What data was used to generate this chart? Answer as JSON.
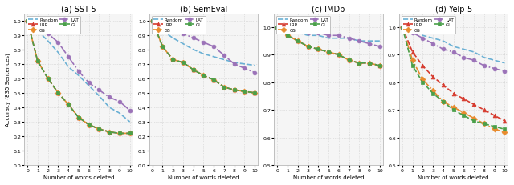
{
  "titles": [
    "(a) SST-5",
    "(b) SemEval",
    "(c) IMDb",
    "(d) Yelp-5"
  ],
  "ylabel": "Accuracy (835 Sentences)",
  "xlabel": "Number of words deleted",
  "x": [
    0,
    1,
    2,
    3,
    4,
    5,
    6,
    7,
    8,
    9,
    10
  ],
  "series": {
    "Random": {
      "color": "#6ab0d4",
      "linestyle": "--",
      "marker": "",
      "linewidth": 1.2
    },
    "LRP": {
      "color": "#d63b2f",
      "linestyle": "--",
      "marker": "^",
      "linewidth": 1.2
    },
    "GS": {
      "color": "#e88b2e",
      "linestyle": "-.",
      "marker": "D",
      "linewidth": 1.2
    },
    "LAT": {
      "color": "#9b72b8",
      "linestyle": "-.",
      "marker": "o",
      "linewidth": 1.2
    },
    "GI": {
      "color": "#4aa04a",
      "linestyle": "--",
      "marker": "s",
      "linewidth": 1.2
    }
  },
  "data": {
    "SST-5": {
      "Random": [
        1.0,
        0.93,
        0.86,
        0.78,
        0.68,
        0.62,
        0.55,
        0.48,
        0.4,
        0.36,
        0.3
      ],
      "LRP": [
        1.0,
        0.72,
        0.6,
        0.5,
        0.42,
        0.33,
        0.28,
        0.25,
        0.23,
        0.22,
        0.22
      ],
      "GS": [
        1.0,
        0.72,
        0.6,
        0.5,
        0.42,
        0.33,
        0.28,
        0.25,
        0.23,
        0.22,
        0.22
      ],
      "LAT": [
        1.0,
        0.96,
        0.91,
        0.85,
        0.75,
        0.65,
        0.57,
        0.52,
        0.47,
        0.44,
        0.38
      ],
      "GI": [
        1.0,
        0.72,
        0.6,
        0.5,
        0.42,
        0.33,
        0.28,
        0.25,
        0.23,
        0.22,
        0.22
      ]
    },
    "SemEval": {
      "Random": [
        1.0,
        0.93,
        0.88,
        0.84,
        0.8,
        0.77,
        0.75,
        0.73,
        0.71,
        0.7,
        0.69
      ],
      "LRP": [
        1.0,
        0.82,
        0.73,
        0.71,
        0.66,
        0.62,
        0.59,
        0.54,
        0.52,
        0.51,
        0.5
      ],
      "GS": [
        1.0,
        0.82,
        0.73,
        0.71,
        0.66,
        0.62,
        0.59,
        0.54,
        0.52,
        0.51,
        0.5
      ],
      "LAT": [
        1.0,
        0.97,
        0.94,
        0.91,
        0.88,
        0.85,
        0.82,
        0.76,
        0.7,
        0.67,
        0.64
      ],
      "GI": [
        1.0,
        0.82,
        0.73,
        0.71,
        0.66,
        0.62,
        0.59,
        0.54,
        0.52,
        0.51,
        0.5
      ]
    },
    "IMDb": {
      "Random": [
        1.0,
        0.99,
        0.98,
        0.97,
        0.97,
        0.96,
        0.96,
        0.96,
        0.95,
        0.95,
        0.95
      ],
      "LRP": [
        1.0,
        0.97,
        0.95,
        0.93,
        0.92,
        0.91,
        0.9,
        0.88,
        0.87,
        0.87,
        0.86
      ],
      "GS": [
        1.0,
        0.97,
        0.95,
        0.93,
        0.92,
        0.91,
        0.9,
        0.88,
        0.87,
        0.87,
        0.86
      ],
      "LAT": [
        1.0,
        0.99,
        0.99,
        0.98,
        0.98,
        0.97,
        0.97,
        0.96,
        0.95,
        0.94,
        0.93
      ],
      "GI": [
        1.0,
        0.97,
        0.95,
        0.93,
        0.92,
        0.91,
        0.9,
        0.88,
        0.87,
        0.87,
        0.86
      ]
    },
    "Yelp-5": {
      "Random": [
        1.0,
        0.99,
        0.97,
        0.96,
        0.95,
        0.93,
        0.92,
        0.91,
        0.89,
        0.88,
        0.87
      ],
      "LRP": [
        1.0,
        0.91,
        0.86,
        0.82,
        0.79,
        0.76,
        0.74,
        0.72,
        0.7,
        0.68,
        0.66
      ],
      "GS": [
        1.0,
        0.88,
        0.81,
        0.77,
        0.73,
        0.71,
        0.69,
        0.67,
        0.65,
        0.63,
        0.62
      ],
      "LAT": [
        1.0,
        0.98,
        0.96,
        0.94,
        0.92,
        0.91,
        0.89,
        0.88,
        0.86,
        0.85,
        0.84
      ],
      "GI": [
        1.0,
        0.86,
        0.8,
        0.76,
        0.73,
        0.7,
        0.68,
        0.66,
        0.65,
        0.64,
        0.63
      ]
    }
  },
  "ylims": {
    "SST-5": [
      0.0,
      1.05
    ],
    "SemEval": [
      0.0,
      1.05
    ],
    "IMDb": [
      0.5,
      1.05
    ],
    "Yelp-5": [
      0.5,
      1.05
    ]
  },
  "yticks": {
    "SST-5": [
      0.0,
      0.1,
      0.2,
      0.3,
      0.4,
      0.5,
      0.6,
      0.7,
      0.8,
      0.9,
      1.0
    ],
    "SemEval": [
      0.0,
      0.1,
      0.2,
      0.3,
      0.4,
      0.5,
      0.6,
      0.7,
      0.8,
      0.9,
      1.0
    ],
    "IMDb": [
      0.5,
      0.6,
      0.7,
      0.8,
      0.9,
      1.0
    ],
    "Yelp-5": [
      0.5,
      0.6,
      0.7,
      0.8,
      0.9,
      1.0
    ]
  },
  "bg_color": "#f5f5f5",
  "marker_size": 3.5
}
